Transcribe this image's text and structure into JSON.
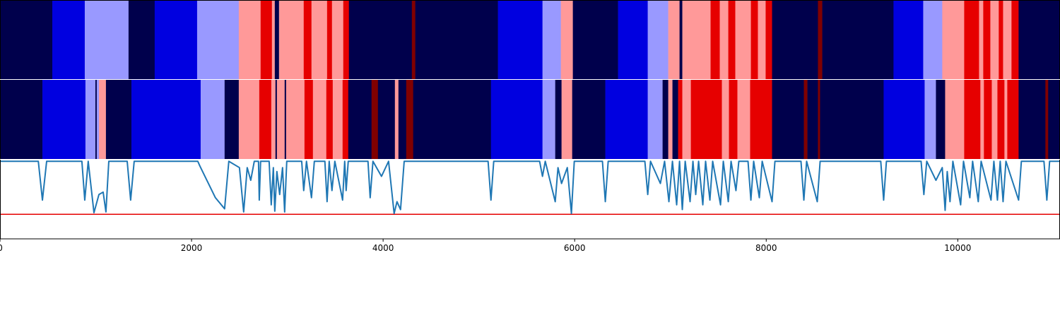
{
  "chart_data": {
    "type": "line",
    "xlim": [
      0,
      11060
    ],
    "xticks": [
      0,
      2000,
      4000,
      6000,
      8000,
      10000
    ],
    "ylim": [
      0,
      1
    ],
    "threshold": 0.31,
    "threshold_color": "#e60000",
    "line_color": "#1f77b4",
    "state_colors": [
      "#00004c",
      "#0000e0",
      "#9999ff",
      "#ff9999",
      "#e60000",
      "#800000"
    ],
    "strips": [
      {
        "starts": [
          0,
          546,
          885,
          1342,
          1615,
          2058,
          2493,
          2721,
          2839,
          2869,
          2913,
          3171,
          3252,
          3415,
          3466,
          3584,
          3643,
          4300,
          4336,
          5199,
          5664,
          5856,
          5981,
          6453,
          6763,
          6977,
          7095,
          7124,
          7419,
          7515,
          7604,
          7677,
          7840,
          7913,
          7994,
          8061,
          8540,
          8585,
          9329,
          9639,
          9838,
          10067,
          10222,
          10266,
          10340,
          10428,
          10473,
          10561,
          10635
        ],
        "states": [
          0,
          1,
          2,
          0,
          1,
          2,
          3,
          4,
          3,
          0,
          3,
          4,
          3,
          4,
          3,
          4,
          0,
          5,
          0,
          1,
          2,
          3,
          0,
          1,
          2,
          3,
          0,
          3,
          4,
          3,
          4,
          3,
          4,
          3,
          4,
          0,
          5,
          0,
          1,
          2,
          3,
          4,
          3,
          4,
          3,
          4,
          3,
          4,
          0
        ]
      },
      {
        "starts": [
          0,
          443,
          892,
          996,
          1010,
          1033,
          1106,
          1372,
          2095,
          2345,
          2493,
          2707,
          2832,
          2876,
          2891,
          2972,
          2987,
          3179,
          3267,
          3407,
          3474,
          3577,
          3636,
          3879,
          3946,
          4123,
          4160,
          4241,
          4314,
          5126,
          5664,
          5797,
          5863,
          5974,
          6320,
          6763,
          6918,
          6977,
          7021,
          7080,
          7124,
          7213,
          7537,
          7611,
          7699,
          7832,
          8061,
          8393,
          8430,
          8540,
          8562,
          9226,
          9654,
          9772,
          9868,
          10067,
          10236,
          10273,
          10355,
          10414,
          10487,
          10517,
          10635,
          10915,
          10944
        ],
        "states": [
          0,
          1,
          2,
          0,
          2,
          3,
          0,
          1,
          2,
          0,
          3,
          4,
          3,
          0,
          3,
          0,
          3,
          4,
          3,
          4,
          3,
          4,
          0,
          5,
          0,
          3,
          0,
          5,
          0,
          1,
          2,
          0,
          3,
          0,
          1,
          2,
          0,
          3,
          0,
          4,
          3,
          4,
          3,
          4,
          3,
          4,
          0,
          5,
          0,
          5,
          0,
          1,
          2,
          0,
          3,
          4,
          3,
          4,
          3,
          4,
          3,
          4,
          0,
          5,
          0
        ]
      }
    ],
    "x": [
      0,
      400,
      443,
      487,
      855,
      885,
      921,
      981,
      1033,
      1077,
      1106,
      1136,
      1328,
      1364,
      1401,
      2065,
      2087,
      2176,
      2249,
      2345,
      2389,
      2500,
      2544,
      2581,
      2618,
      2655,
      2699,
      2707,
      2721,
      2810,
      2832,
      2854,
      2869,
      2891,
      2920,
      2950,
      2972,
      2994,
      3150,
      3171,
      3200,
      3252,
      3282,
      3392,
      3415,
      3437,
      3466,
      3496,
      3577,
      3599,
      3614,
      3636,
      3842,
      3865,
      3894,
      3983,
      4057,
      4115,
      4145,
      4182,
      4220,
      5096,
      5126,
      5155,
      5634,
      5664,
      5693,
      5797,
      5826,
      5863,
      5923,
      5966,
      5996,
      6290,
      6320,
      6350,
      6733,
      6763,
      6792,
      6895,
      6939,
      6984,
      7021,
      7065,
      7095,
      7124,
      7154,
      7205,
      7235,
      7264,
      7294,
      7338,
      7367,
      7412,
      7441,
      7523,
      7552,
      7604,
      7633,
      7684,
      7714,
      7810,
      7840,
      7869,
      7928,
      7958,
      8061,
      8091,
      8363,
      8393,
      8422,
      8533,
      8563,
      9196,
      9226,
      9255,
      9617,
      9646,
      9676,
      9772,
      9838,
      9868,
      9890,
      9919,
      9949,
      10030,
      10060,
      10126,
      10155,
      10214,
      10244,
      10347,
      10377,
      10414,
      10443,
      10473,
      10503,
      10635,
      10664,
      10900,
      10930,
      10959,
      11060
    ],
    "values": [
      0.98,
      0.98,
      0.49,
      0.98,
      0.98,
      0.49,
      0.98,
      0.33,
      0.56,
      0.59,
      0.34,
      0.98,
      0.98,
      0.49,
      0.98,
      0.98,
      0.92,
      0.7,
      0.52,
      0.38,
      0.98,
      0.9,
      0.34,
      0.9,
      0.74,
      0.98,
      0.98,
      0.49,
      0.98,
      0.98,
      0.43,
      0.9,
      0.35,
      0.85,
      0.56,
      0.9,
      0.34,
      0.98,
      0.98,
      0.61,
      0.98,
      0.52,
      0.98,
      0.98,
      0.47,
      0.98,
      0.61,
      0.98,
      0.49,
      0.98,
      0.61,
      0.98,
      0.98,
      0.52,
      0.98,
      0.79,
      0.98,
      0.32,
      0.47,
      0.37,
      0.98,
      0.98,
      0.49,
      0.98,
      0.98,
      0.79,
      0.98,
      0.47,
      0.9,
      0.7,
      0.9,
      0.32,
      0.98,
      0.98,
      0.47,
      0.98,
      0.98,
      0.56,
      0.98,
      0.7,
      0.98,
      0.47,
      0.98,
      0.43,
      0.98,
      0.37,
      0.98,
      0.47,
      0.98,
      0.56,
      0.98,
      0.43,
      0.98,
      0.49,
      0.98,
      0.43,
      0.98,
      0.47,
      0.98,
      0.61,
      0.98,
      0.98,
      0.49,
      0.98,
      0.52,
      0.98,
      0.47,
      0.98,
      0.98,
      0.49,
      0.98,
      0.47,
      0.98,
      0.98,
      0.49,
      0.98,
      0.98,
      0.56,
      0.98,
      0.74,
      0.9,
      0.36,
      0.85,
      0.47,
      0.98,
      0.43,
      0.98,
      0.52,
      0.98,
      0.47,
      0.98,
      0.49,
      0.98,
      0.49,
      0.98,
      0.47,
      0.98,
      0.49,
      0.98,
      0.98,
      0.49,
      0.98,
      0.98
    ]
  }
}
